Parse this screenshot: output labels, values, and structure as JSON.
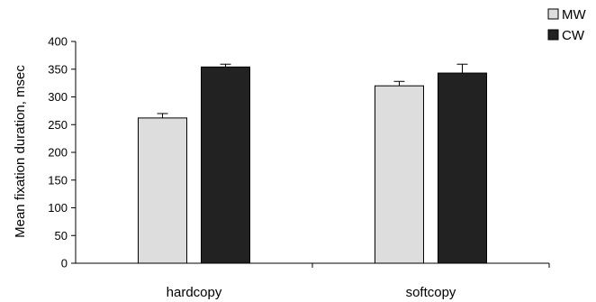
{
  "chart_data": {
    "type": "bar",
    "title": "",
    "xlabel": "",
    "ylabel": "Mean fixation duration, msec",
    "categories": [
      "hardcopy",
      "softcopy"
    ],
    "ylim": [
      0,
      400
    ],
    "yticks": [
      0,
      50,
      100,
      150,
      200,
      250,
      300,
      350,
      400
    ],
    "series": [
      {
        "name": "MW",
        "values": [
          262,
          320
        ],
        "errors": [
          8,
          8
        ],
        "color": "#dddddd"
      },
      {
        "name": "CW",
        "values": [
          354,
          343
        ],
        "errors": [
          5,
          16
        ],
        "color": "#222222"
      }
    ],
    "grid": false,
    "legend_position": "top-right"
  }
}
